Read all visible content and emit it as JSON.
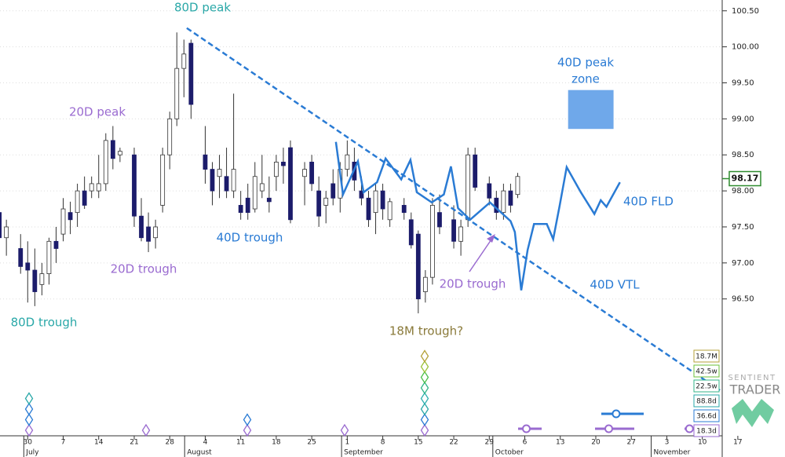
{
  "chart_data": {
    "type": "candlestick",
    "x": [
      -4,
      -3,
      -1,
      0,
      1,
      2,
      3,
      4,
      5,
      6,
      7,
      8,
      9,
      10,
      11,
      12,
      13,
      15,
      16,
      17,
      18,
      19,
      20,
      21,
      22,
      23,
      25,
      26,
      27,
      28,
      29,
      30,
      31,
      32,
      33,
      34,
      35,
      36,
      37,
      39,
      40,
      41,
      42,
      43,
      44,
      45,
      46,
      47,
      48,
      49,
      50,
      51,
      53,
      54,
      55,
      56,
      57,
      58,
      60,
      61,
      62,
      63,
      65,
      66,
      67,
      68,
      69
    ],
    "open": [
      97.7,
      97.35,
      97.2,
      97.0,
      96.9,
      96.7,
      96.85,
      97.3,
      97.4,
      97.7,
      97.7,
      98.0,
      98.0,
      98.0,
      98.1,
      98.7,
      98.5,
      98.5,
      97.65,
      97.5,
      97.35,
      97.8,
      98.5,
      99.0,
      99.7,
      100.05,
      98.5,
      98.3,
      98.2,
      98.2,
      98.0,
      97.8,
      97.9,
      97.75,
      98.0,
      97.9,
      98.2,
      98.4,
      98.6,
      98.2,
      98.4,
      98.0,
      97.8,
      98.1,
      97.9,
      98.3,
      98.4,
      98.0,
      97.9,
      97.7,
      98.0,
      97.6,
      97.8,
      97.6,
      97.4,
      96.6,
      96.8,
      97.7,
      97.6,
      97.3,
      97.6,
      98.5,
      98.1,
      97.9,
      97.7,
      98.0,
      97.95
    ],
    "high": [
      97.9,
      97.6,
      97.4,
      97.3,
      97.2,
      97.0,
      97.35,
      97.5,
      97.9,
      97.85,
      98.1,
      98.2,
      98.2,
      98.5,
      98.8,
      98.9,
      98.6,
      98.6,
      97.9,
      97.7,
      97.6,
      98.6,
      99.1,
      100.2,
      100.1,
      100.1,
      98.9,
      98.4,
      98.5,
      98.6,
      99.35,
      98.0,
      98.1,
      98.4,
      98.5,
      98.2,
      98.5,
      98.6,
      98.7,
      98.4,
      98.5,
      98.2,
      98.0,
      98.3,
      98.4,
      98.7,
      98.6,
      98.2,
      98.0,
      98.1,
      98.1,
      97.9,
      97.9,
      97.7,
      97.45,
      96.9,
      97.9,
      97.95,
      97.8,
      97.6,
      98.6,
      98.6,
      98.2,
      98.0,
      98.1,
      98.1,
      98.25
    ],
    "low": [
      97.05,
      97.1,
      96.85,
      96.45,
      96.4,
      96.55,
      96.7,
      97.0,
      97.3,
      97.4,
      97.5,
      97.75,
      97.9,
      97.9,
      98.0,
      98.3,
      98.4,
      97.5,
      97.3,
      97.15,
      97.2,
      97.7,
      98.3,
      98.9,
      99.3,
      99.0,
      98.1,
      97.8,
      97.9,
      97.9,
      97.9,
      97.6,
      97.6,
      97.7,
      97.9,
      97.7,
      98.0,
      98.1,
      97.55,
      97.8,
      98.0,
      97.5,
      97.55,
      97.8,
      97.7,
      98.2,
      98.0,
      97.8,
      97.5,
      97.4,
      97.6,
      97.5,
      97.6,
      97.2,
      96.3,
      96.45,
      96.7,
      97.4,
      97.2,
      97.1,
      97.5,
      98.0,
      97.8,
      97.6,
      97.6,
      97.7,
      97.9
    ],
    "close": [
      97.35,
      97.5,
      96.95,
      96.9,
      96.6,
      96.85,
      97.3,
      97.2,
      97.75,
      97.6,
      98.0,
      97.8,
      98.1,
      98.1,
      98.7,
      98.45,
      98.55,
      97.65,
      97.35,
      97.3,
      97.5,
      98.5,
      99.0,
      99.7,
      99.9,
      99.2,
      98.3,
      98.0,
      98.3,
      98.0,
      98.3,
      97.7,
      97.7,
      98.2,
      98.1,
      97.85,
      98.4,
      98.35,
      97.6,
      98.3,
      98.1,
      97.65,
      97.9,
      97.9,
      98.3,
      98.5,
      98.15,
      97.9,
      97.6,
      98.0,
      97.75,
      97.85,
      97.7,
      97.25,
      96.5,
      96.8,
      97.8,
      97.5,
      97.3,
      97.5,
      98.5,
      98.05,
      97.9,
      97.7,
      98.0,
      97.8,
      98.2
    ],
    "up_color": "#ffffff",
    "down_color": "#1c1c6b",
    "last_price": 98.17,
    "series": [
      {
        "name": "40D FLD",
        "color": "#2a7bd4",
        "x": [
          43.4,
          44.4,
          46.5,
          47.3,
          49.2,
          50.4,
          52.6,
          53.9,
          54.8,
          56.9,
          58.6,
          59.6,
          60.6,
          62.3,
          65.1,
          68.0,
          68.6,
          69.5,
          70.4,
          71.3,
          73.1,
          74.0,
          74.9,
          75.9,
          77.9,
          79.8,
          80.7,
          81.5,
          83.4
        ],
        "values": [
          98.68,
          97.95,
          98.41,
          97.98,
          98.12,
          98.45,
          98.16,
          98.43,
          97.98,
          97.84,
          97.95,
          98.34,
          97.76,
          97.6,
          97.84,
          97.58,
          97.43,
          96.62,
          97.18,
          97.54,
          97.54,
          97.33,
          97.79,
          98.33,
          97.98,
          97.68,
          97.87,
          97.78,
          98.12
        ]
      },
      {
        "name": "40D VTL",
        "color": "#2a7bd4",
        "dashed": true,
        "x": [
          22.4,
          97.8
        ],
        "values": [
          100.26,
          95.21
        ]
      }
    ],
    "zone": {
      "label": [
        "40D peak",
        "zone"
      ],
      "color": "#6fa8ea",
      "x": [
        76.1,
        82.5
      ],
      "values": [
        99.4,
        98.86
      ]
    },
    "annotations": [
      "80D peak",
      "20D peak",
      "40D trough",
      "20D trough",
      "80D trough",
      "18M trough?",
      "20D trough"
    ],
    "ylim": [
      94.6,
      100.65
    ],
    "yticks": [
      {
        "value": 96.5,
        "label": "96.50"
      },
      {
        "value": 97,
        "label": "97.00"
      },
      {
        "value": 97.5,
        "label": "97.50"
      },
      {
        "value": 98,
        "label": "98.00"
      },
      {
        "value": 98.5,
        "label": "98.50"
      },
      {
        "value": 99,
        "label": "99.00"
      },
      {
        "value": 99.5,
        "label": "99.50"
      },
      {
        "value": 100,
        "label": "100.00"
      },
      {
        "value": 100.5,
        "label": "100.50"
      }
    ],
    "xlim": [
      -3.9,
      97.8
    ],
    "xticks": [
      {
        "value": 0,
        "label": "30"
      },
      {
        "value": 5,
        "label": "7"
      },
      {
        "value": 10,
        "label": "14"
      },
      {
        "value": 15,
        "label": "21"
      },
      {
        "value": 20,
        "label": "28"
      },
      {
        "value": 25,
        "label": "4"
      },
      {
        "value": 30,
        "label": "11"
      },
      {
        "value": 35,
        "label": "18"
      },
      {
        "value": 40,
        "label": "25"
      },
      {
        "value": 45,
        "label": "1"
      },
      {
        "value": 50,
        "label": "8"
      },
      {
        "value": 55,
        "label": "15"
      },
      {
        "value": 60,
        "label": "22"
      },
      {
        "value": 65,
        "label": "29"
      },
      {
        "value": 70,
        "label": "6"
      },
      {
        "value": 75,
        "label": "13"
      },
      {
        "value": 80,
        "label": "20"
      },
      {
        "value": 85,
        "label": "27"
      },
      {
        "value": 90,
        "label": "3"
      },
      {
        "value": 95,
        "label": "10"
      },
      {
        "value": 100,
        "label": "17"
      }
    ],
    "month_ticks": [
      {
        "value": -0.55,
        "label": "July"
      },
      {
        "value": 22.1,
        "label": "August"
      },
      {
        "value": 44.2,
        "label": "September"
      },
      {
        "value": 65.5,
        "label": "October"
      },
      {
        "value": 87.8,
        "label": "November"
      }
    ],
    "cycle_boxes": [
      "18.7M",
      "42.5w",
      "22.5w",
      "88.8d",
      "36.6d",
      "18.3d"
    ],
    "logo": [
      "SENTIENT",
      "TRADER"
    ]
  }
}
